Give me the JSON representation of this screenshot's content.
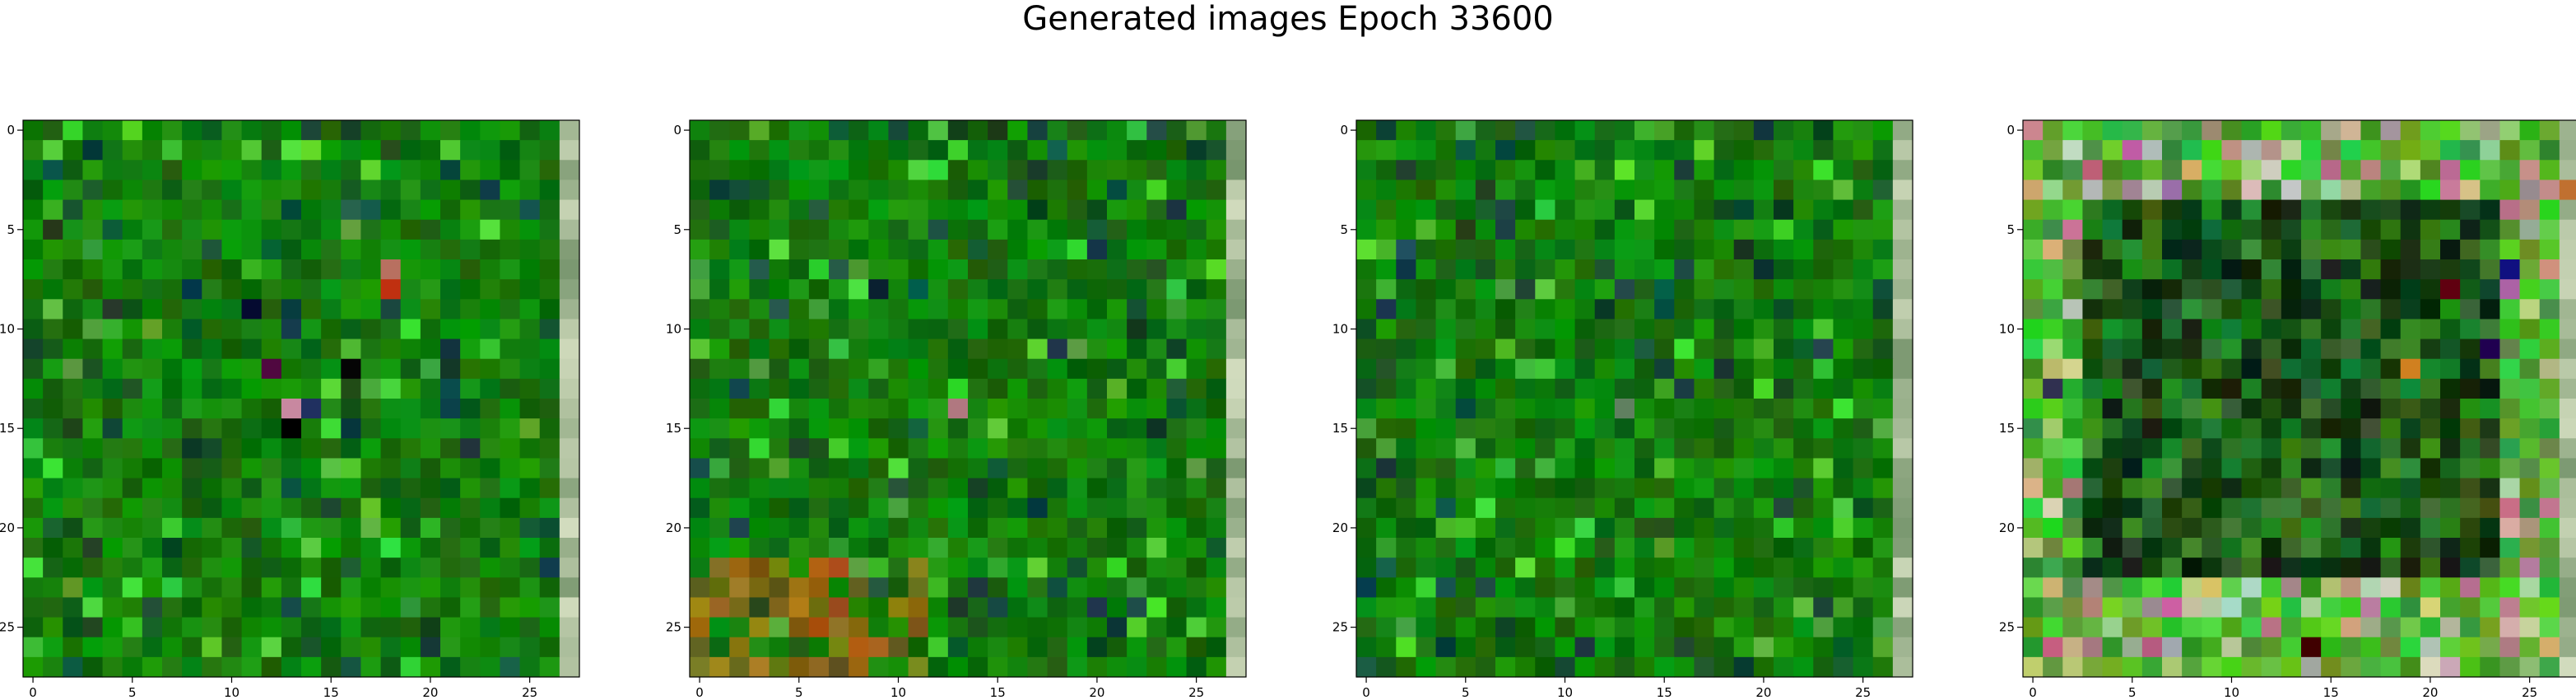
{
  "figure": {
    "title": "Generated images Epoch 33600"
  },
  "chart_data": [
    {
      "type": "heatmap",
      "description": "28x28 generated RGB image, mostly green pixels",
      "grid_size": [
        28,
        28
      ],
      "seed": 11,
      "palette": "green-noise",
      "xlim": [
        -0.5,
        27.5
      ],
      "ylim": [
        27.5,
        -0.5
      ],
      "x_ticks": [
        0,
        5,
        10,
        15,
        20,
        25
      ],
      "y_ticks": [
        0,
        5,
        10,
        15,
        20,
        25
      ],
      "right_edge_light_column": true,
      "notable_pixels": [
        {
          "x": 18,
          "y": 8,
          "color": "#c03010"
        },
        {
          "x": 18,
          "y": 7,
          "color": "#b87060"
        },
        {
          "x": 11,
          "y": 9,
          "color": "#050a30"
        },
        {
          "x": 13,
          "y": 14,
          "color": "#c888a0"
        },
        {
          "x": 14,
          "y": 14,
          "color": "#203060"
        },
        {
          "x": 13,
          "y": 15,
          "color": "#000000"
        },
        {
          "x": 12,
          "y": 12,
          "color": "#500840"
        },
        {
          "x": 16,
          "y": 12,
          "color": "#050505"
        }
      ]
    },
    {
      "type": "heatmap",
      "description": "28x28 generated RGB image, mostly green pixels",
      "grid_size": [
        28,
        28
      ],
      "seed": 23,
      "palette": "green-noise",
      "xlim": [
        -0.5,
        27.5
      ],
      "ylim": [
        27.5,
        -0.5
      ],
      "x_ticks": [
        0,
        5,
        10,
        15,
        20,
        25
      ],
      "y_ticks": [
        0,
        5,
        10,
        15,
        20,
        25
      ],
      "right_edge_light_column": true,
      "bottom_left_brown": true,
      "notable_pixels": [
        {
          "x": 13,
          "y": 14,
          "color": "#b07880"
        },
        {
          "x": 9,
          "y": 8,
          "color": "#0a2030"
        }
      ]
    },
    {
      "type": "heatmap",
      "description": "28x28 generated RGB image, mostly green pixels",
      "grid_size": [
        28,
        28
      ],
      "seed": 37,
      "palette": "green-noise",
      "xlim": [
        -0.5,
        27.5
      ],
      "ylim": [
        27.5,
        -0.5
      ],
      "x_ticks": [
        0,
        5,
        10,
        15,
        20,
        25
      ],
      "y_ticks": [
        0,
        5,
        10,
        15,
        20,
        25
      ],
      "right_edge_light_column": true,
      "notable_pixels": [
        {
          "x": 2,
          "y": 6,
          "color": "#205060"
        },
        {
          "x": 20,
          "y": 7,
          "color": "#0a3030"
        },
        {
          "x": 13,
          "y": 14,
          "color": "#608060"
        }
      ]
    },
    {
      "type": "heatmap",
      "description": "28x28 generated RGB image, green border with dark center band",
      "grid_size": [
        28,
        28
      ],
      "seed": 51,
      "palette": "colorful-border",
      "xlim": [
        -0.5,
        27.5
      ],
      "ylim": [
        27.5,
        -0.5
      ],
      "x_ticks": [
        0,
        5,
        10,
        15,
        20,
        25
      ],
      "y_ticks": [
        0,
        5,
        10,
        15,
        20,
        25
      ],
      "right_edge_light_column": true,
      "notable_pixels": [
        {
          "x": 24,
          "y": 7,
          "color": "#101080"
        },
        {
          "x": 15,
          "y": 7,
          "color": "#202020"
        },
        {
          "x": 21,
          "y": 8,
          "color": "#600010"
        },
        {
          "x": 19,
          "y": 12,
          "color": "#d08020"
        },
        {
          "x": 23,
          "y": 11,
          "color": "#200050"
        },
        {
          "x": 1,
          "y": 13,
          "color": "#303050"
        },
        {
          "x": 14,
          "y": 26,
          "color": "#400000"
        },
        {
          "x": 27,
          "y": 3,
          "color": "#c07030"
        }
      ]
    }
  ]
}
